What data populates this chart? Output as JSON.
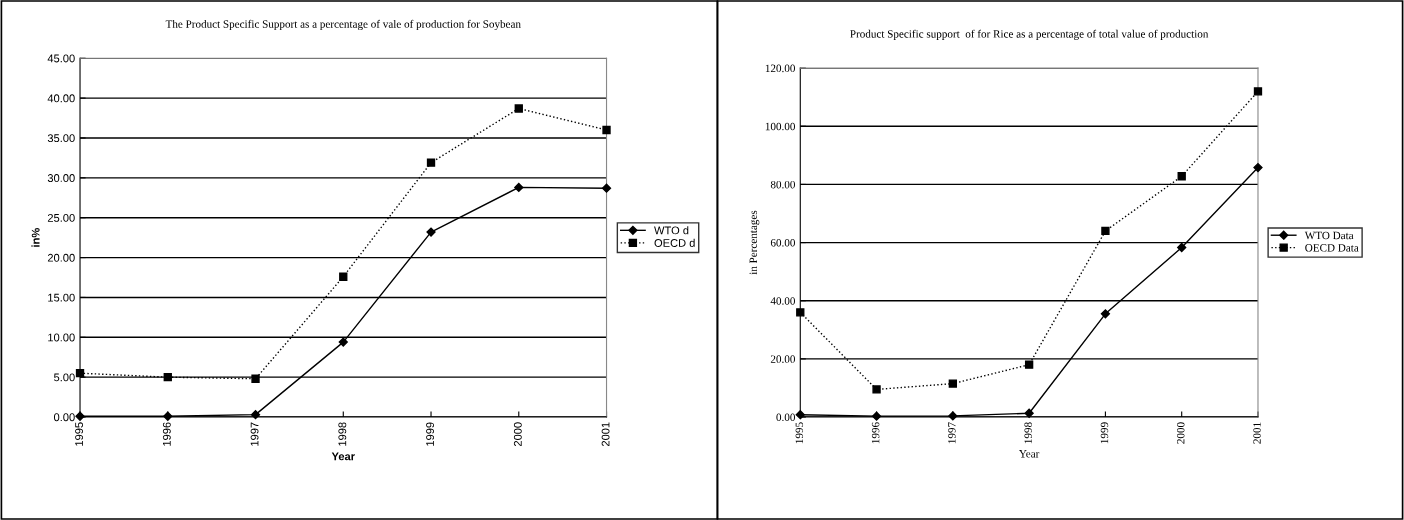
{
  "chart_data": [
    {
      "type": "line",
      "title": "The Product Specific Support as a percentage of vale of production for Soybean",
      "xlabel": "Year",
      "ylabel": "in%",
      "categories": [
        "1995",
        "1996",
        "1997",
        "1998",
        "1999",
        "2000",
        "2001"
      ],
      "series": [
        {
          "name": "WTO d",
          "color": "#000000",
          "values": [
            0.1,
            0.1,
            0.3,
            9.4,
            23.2,
            28.8,
            28.7
          ],
          "marker": "diamond",
          "line_style": "solid"
        },
        {
          "name": "OECD d",
          "color": "#000000",
          "values": [
            5.5,
            5.0,
            4.8,
            17.6,
            31.9,
            38.7,
            36.0
          ],
          "marker": "square",
          "line_style": "dotted"
        }
      ],
      "ylim": [
        0,
        45
      ],
      "yticks": [
        {
          "value": 0,
          "label": "0.00"
        },
        {
          "value": 5,
          "label": "5.00"
        },
        {
          "value": 10,
          "label": "10.00"
        },
        {
          "value": 15,
          "label": "15.00"
        },
        {
          "value": 20,
          "label": "20.00"
        },
        {
          "value": 25,
          "label": "25.00"
        },
        {
          "value": 30,
          "label": "30.00"
        },
        {
          "value": 35,
          "label": "35.00"
        },
        {
          "value": 40,
          "label": "40.00"
        },
        {
          "value": 45,
          "label": "45.00"
        }
      ],
      "grid": "y",
      "legend": "right"
    },
    {
      "type": "line",
      "title": "Product Specific support  of for Rice as a percentage of total value of production",
      "xlabel": "Year",
      "ylabel": "in Percentages",
      "categories": [
        "1995",
        "1996",
        "1997",
        "1998",
        "1999",
        "2000",
        "2001"
      ],
      "series": [
        {
          "name": "WTO Data",
          "color": "#000000",
          "values": [
            0.8,
            0.3,
            0.4,
            1.3,
            35.5,
            58.3,
            85.8
          ],
          "marker": "diamond",
          "line_style": "solid"
        },
        {
          "name": "OECD Data",
          "color": "#000000",
          "values": [
            36,
            9.5,
            11.5,
            18,
            64,
            82.8,
            112
          ],
          "marker": "square",
          "line_style": "dotted"
        }
      ],
      "ylim": [
        0,
        120
      ],
      "yticks": [
        {
          "value": 0,
          "label": "0.00"
        },
        {
          "value": 20,
          "label": "20.00"
        },
        {
          "value": 40,
          "label": "40.00"
        },
        {
          "value": 60,
          "label": "60.00"
        },
        {
          "value": 80,
          "label": "80.00"
        },
        {
          "value": 100,
          "label": "100.00"
        },
        {
          "value": 120,
          "label": "120.00"
        }
      ],
      "grid": "y",
      "legend": "right"
    }
  ]
}
